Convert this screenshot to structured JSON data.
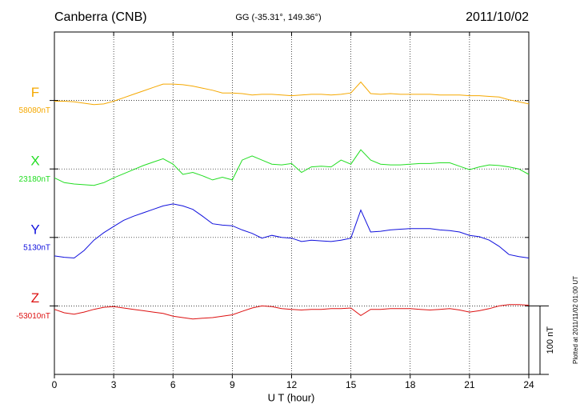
{
  "chart_data": {
    "type": "line",
    "title": "Canberra (CNB)",
    "subtitle": "GG (-35.31°, 149.36°)",
    "date": "2011/10/02",
    "x_label": "U T (hour)",
    "note": "Plotted at 2011/11/02 01:00 UT",
    "xlim": [
      0,
      24
    ],
    "xticks": [
      0,
      3,
      6,
      9,
      12,
      15,
      18,
      21,
      24
    ],
    "grid": true,
    "scale_bar": {
      "value": 100,
      "label": "100 nT"
    },
    "x": [
      0,
      0.5,
      1,
      1.5,
      2,
      2.5,
      3,
      3.5,
      4,
      4.5,
      5,
      5.5,
      6,
      6.5,
      7,
      7.5,
      8,
      8.5,
      9,
      9.5,
      10,
      10.5,
      11,
      11.5,
      12,
      12.5,
      13,
      13.5,
      14,
      14.5,
      15,
      15.5,
      16,
      16.5,
      17,
      17.5,
      18,
      18.5,
      19,
      19.5,
      20,
      20.5,
      21,
      21.5,
      22,
      22.5,
      23,
      23.5,
      24
    ],
    "series": [
      {
        "name": "F",
        "color": "#f5a800",
        "baseline": {
          "value": 58080,
          "label": "58080nT"
        },
        "values": [
          58079,
          58079,
          58078,
          58076,
          58074,
          58075,
          58079,
          58084,
          58089,
          58094,
          58099,
          58104,
          58104,
          58103,
          58101,
          58098,
          58095,
          58091,
          58091,
          58090,
          58088,
          58089,
          58089,
          58088,
          58087,
          58088,
          58089,
          58089,
          58088,
          58089,
          58091,
          58107,
          58090,
          58089,
          58090,
          58089,
          58089,
          58089,
          58089,
          58088,
          58088,
          58088,
          58087,
          58087,
          58086,
          58085,
          58081,
          58078,
          58075
        ]
      },
      {
        "name": "X",
        "color": "#22dd22",
        "baseline": {
          "value": 23180,
          "label": "23180nT"
        },
        "values": [
          23167,
          23160,
          23158,
          23157,
          23156,
          23160,
          23167,
          23173,
          23179,
          23185,
          23190,
          23195,
          23187,
          23172,
          23175,
          23170,
          23164,
          23168,
          23164,
          23193,
          23199,
          23193,
          23187,
          23186,
          23188,
          23175,
          23183,
          23184,
          23183,
          23193,
          23187,
          23208,
          23193,
          23187,
          23186,
          23186,
          23187,
          23188,
          23188,
          23189,
          23189,
          23184,
          23179,
          23183,
          23186,
          23185,
          23183,
          23180,
          23172
        ]
      },
      {
        "name": "Y",
        "color": "#1010dd",
        "baseline": {
          "value": 5130,
          "label": "5130nT"
        },
        "values": [
          5103,
          5101,
          5100,
          5111,
          5126,
          5137,
          5146,
          5155,
          5161,
          5166,
          5171,
          5176,
          5179,
          5176,
          5171,
          5161,
          5150,
          5148,
          5147,
          5141,
          5136,
          5129,
          5133,
          5130,
          5129,
          5124,
          5126,
          5125,
          5124,
          5126,
          5129,
          5170,
          5138,
          5139,
          5141,
          5142,
          5143,
          5143,
          5143,
          5141,
          5140,
          5138,
          5133,
          5131,
          5126,
          5117,
          5105,
          5102,
          5100
        ]
      },
      {
        "name": "Z",
        "color": "#dd1111",
        "baseline": {
          "value": -53010,
          "label": "-53010nT"
        },
        "values": [
          -53015,
          -53020,
          -53022,
          -53019,
          -53015,
          -53012,
          -53011,
          -53013,
          -53015,
          -53017,
          -53019,
          -53021,
          -53025,
          -53027,
          -53029,
          -53028,
          -53027,
          -53025,
          -53023,
          -53018,
          -53013,
          -53010,
          -53011,
          -53014,
          -53015,
          -53016,
          -53015,
          -53015,
          -53014,
          -53014,
          -53013,
          -53024,
          -53015,
          -53015,
          -53014,
          -53014,
          -53014,
          -53015,
          -53016,
          -53015,
          -53014,
          -53016,
          -53019,
          -53017,
          -53014,
          -53010,
          -53008,
          -53008,
          -53009
        ]
      }
    ]
  }
}
